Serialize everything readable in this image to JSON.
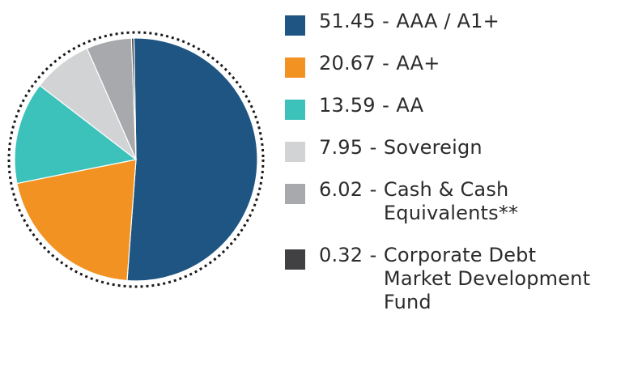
{
  "chart_data": {
    "type": "pie",
    "title": "",
    "start_angle_deg": -91,
    "border_style": "dotted",
    "legend_position": "right",
    "slices": [
      {
        "value": 51.45,
        "value_label": "51.45",
        "label": "AAA / A1+",
        "color": "#1f5582"
      },
      {
        "value": 20.67,
        "value_label": "20.67",
        "label": "AA+",
        "color": "#f29222"
      },
      {
        "value": 13.59,
        "value_label": "13.59",
        "label": "AA",
        "color": "#3cc2bb"
      },
      {
        "value": 7.95,
        "value_label": "7.95",
        "label": "Sovereign",
        "color": "#d1d3d4"
      },
      {
        "value": 6.02,
        "value_label": "6.02",
        "label": "Cash & Cash\nEquivalents**",
        "color": "#a7a9ac"
      },
      {
        "value": 0.32,
        "value_label": "0.32",
        "label": "Corporate Debt\nMarket Development\nFund",
        "color": "#414042"
      }
    ]
  },
  "legend": {
    "separator": "-"
  }
}
